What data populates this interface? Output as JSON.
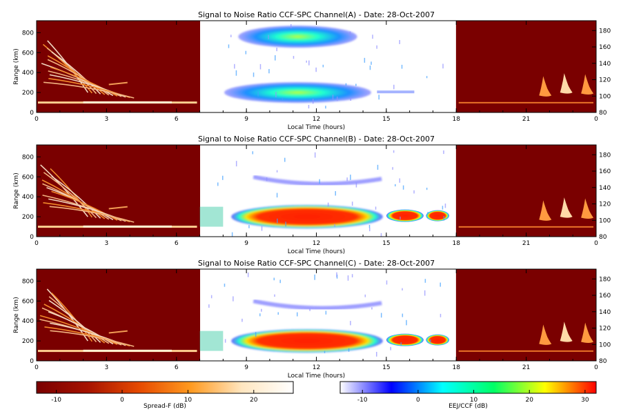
{
  "chart_data": {
    "type": "heatmap",
    "date": "28-Oct-2007",
    "panels": [
      {
        "title": "Signal to Noise Ratio CCF-SPC Channel(A) - Date: 28-Oct-2007",
        "xlabel": "Local Time (hours)",
        "ylabel": "Range (km)",
        "xticks": [
          "0",
          "3",
          "6",
          "9",
          "12",
          "15",
          "18",
          "21",
          "0"
        ],
        "yticks_left": [
          "0",
          "200",
          "400",
          "600",
          "800"
        ],
        "yticks_right": [
          "80",
          "100",
          "120",
          "140",
          "160",
          "180"
        ],
        "xlim": [
          0,
          24
        ],
        "ylim_left": [
          0,
          920
        ],
        "ylim_right": [
          80,
          192
        ],
        "day_window_hours": [
          7,
          18
        ],
        "features": [
          {
            "layer": "spread-F",
            "hours": [
              0,
              4.2
            ],
            "range_km": [
              150,
              720
            ],
            "snr_db": [
              0,
              25
            ]
          },
          {
            "layer": "E-region",
            "hours": [
              0,
              7
            ],
            "range_km": [
              80,
              120
            ],
            "snr_db": [
              5,
              25
            ]
          },
          {
            "layer": "CCF echo",
            "hours": [
              8.2,
              13.5
            ],
            "range_km": [
              650,
              880
            ],
            "snr_db": [
              0,
              15
            ]
          },
          {
            "layer": "EEJ",
            "hours": [
              8,
              14.5
            ],
            "range_km": [
              100,
              320
            ],
            "snr_db": [
              5,
              20
            ]
          },
          {
            "layer": "EEJ weak",
            "hours": [
              14.5,
              16.5
            ],
            "range_km": [
              190,
              230
            ],
            "snr_db": [
              0,
              8
            ]
          },
          {
            "layer": "spread-F late",
            "hours": [
              22,
              24
            ],
            "range_km": [
              120,
              360
            ],
            "snr_db": [
              5,
              25
            ]
          },
          {
            "layer": "E-region late",
            "hours": [
              18,
              24
            ],
            "range_km": [
              80,
              120
            ],
            "snr_db": [
              0,
              15
            ]
          }
        ]
      },
      {
        "title": "Signal to Noise Ratio CCF-SPC Channel(B) - Date: 28-Oct-2007",
        "xlabel": "Local Time (hours)",
        "ylabel": "Range (km)",
        "xticks": [
          "0",
          "3",
          "6",
          "9",
          "12",
          "15",
          "18",
          "21",
          "0"
        ],
        "yticks_left": [
          "0",
          "200",
          "400",
          "600",
          "800"
        ],
        "yticks_right": [
          "80",
          "100",
          "120",
          "140",
          "160",
          "180"
        ],
        "xlim": [
          0,
          24
        ],
        "ylim_left": [
          0,
          920
        ],
        "ylim_right": [
          80,
          192
        ],
        "day_window_hours": [
          7,
          18
        ],
        "features": [
          {
            "layer": "spread-F",
            "hours": [
              0,
              4.2
            ],
            "range_km": [
              150,
              720
            ],
            "snr_db": [
              0,
              25
            ]
          },
          {
            "layer": "E-region",
            "hours": [
              0,
              7
            ],
            "range_km": [
              80,
              120
            ],
            "snr_db": [
              5,
              25
            ]
          },
          {
            "layer": "CCF echo",
            "hours": [
              9,
              15
            ],
            "range_km": [
              480,
              640
            ],
            "snr_db": [
              -5,
              5
            ]
          },
          {
            "layer": "EEJ",
            "hours": [
              7,
              17.5
            ],
            "range_km": [
              80,
              320
            ],
            "snr_db": [
              10,
              32
            ]
          },
          {
            "layer": "spread-F late",
            "hours": [
              22,
              24
            ],
            "range_km": [
              120,
              360
            ],
            "snr_db": [
              5,
              25
            ]
          },
          {
            "layer": "E-region late",
            "hours": [
              18,
              24
            ],
            "range_km": [
              80,
              120
            ],
            "snr_db": [
              0,
              15
            ]
          }
        ]
      },
      {
        "title": "Signal to Noise Ratio CCF-SPC Channel(C) - Date: 28-Oct-2007",
        "xlabel": "Local Time (hours)",
        "ylabel": "Range (km)",
        "xticks": [
          "0",
          "3",
          "6",
          "9",
          "12",
          "15",
          "18",
          "21",
          "0"
        ],
        "yticks_left": [
          "0",
          "200",
          "400",
          "600",
          "800"
        ],
        "yticks_right": [
          "80",
          "100",
          "120",
          "140",
          "160",
          "180"
        ],
        "xlim": [
          0,
          24
        ],
        "ylim_left": [
          0,
          920
        ],
        "ylim_right": [
          80,
          192
        ],
        "day_window_hours": [
          7,
          18
        ],
        "features": [
          {
            "layer": "spread-F",
            "hours": [
              0,
              4.2
            ],
            "range_km": [
              150,
              720
            ],
            "snr_db": [
              0,
              25
            ]
          },
          {
            "layer": "E-region",
            "hours": [
              0,
              7
            ],
            "range_km": [
              80,
              120
            ],
            "snr_db": [
              5,
              25
            ]
          },
          {
            "layer": "CCF echo",
            "hours": [
              9,
              15
            ],
            "range_km": [
              480,
              640
            ],
            "snr_db": [
              -5,
              5
            ]
          },
          {
            "layer": "EEJ",
            "hours": [
              7,
              17.5
            ],
            "range_km": [
              80,
              320
            ],
            "snr_db": [
              10,
              32
            ]
          },
          {
            "layer": "spread-F late",
            "hours": [
              22,
              24
            ],
            "range_km": [
              120,
              360
            ],
            "snr_db": [
              5,
              25
            ]
          },
          {
            "layer": "E-region late",
            "hours": [
              18,
              24
            ],
            "range_km": [
              80,
              120
            ],
            "snr_db": [
              0,
              15
            ]
          }
        ]
      }
    ],
    "colorbars": [
      {
        "label": "Spread-F (dB)",
        "range": [
          -13,
          26
        ],
        "ticks": [
          "-10",
          "0",
          "10",
          "20"
        ],
        "colors": [
          "#7a0000",
          "#a61300",
          "#e64a00",
          "#ff9a20",
          "#ffe6c0",
          "#ffffff"
        ]
      },
      {
        "label": "EEJ/CCF (dB)",
        "range": [
          -14,
          32
        ],
        "ticks": [
          "-10",
          "0",
          "10",
          "20",
          "30"
        ],
        "colors": [
          "#ffffff",
          "#0000ff",
          "#00ffff",
          "#00ff66",
          "#ffff00",
          "#ff0000"
        ]
      }
    ]
  }
}
